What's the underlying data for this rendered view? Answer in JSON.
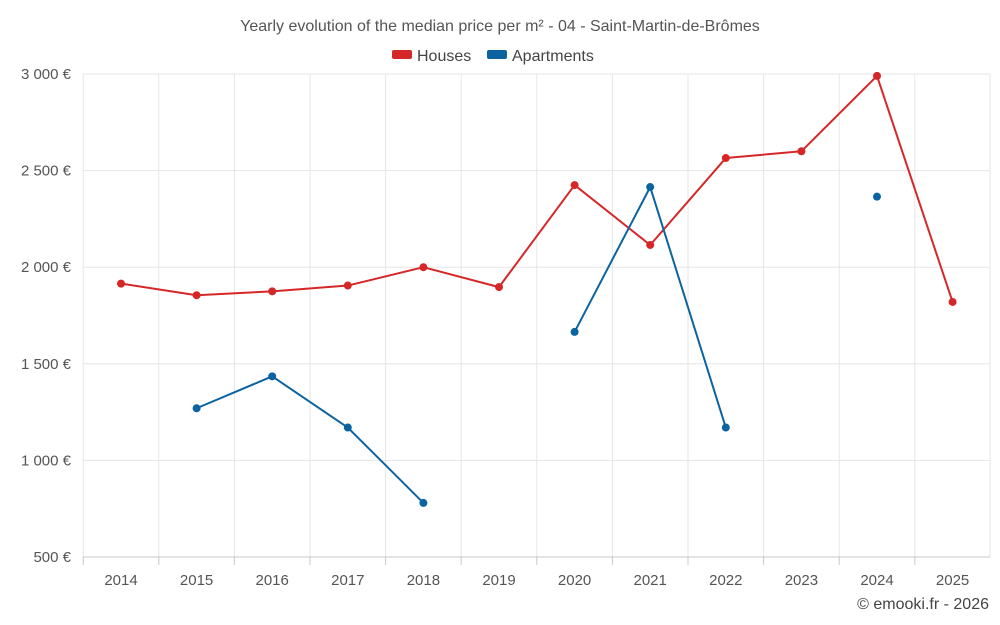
{
  "chart_data": {
    "type": "line",
    "title": "Yearly evolution of the median price per m² - 04 - Saint-Martin-de-Brômes",
    "xlabel": "",
    "ylabel": "",
    "categories": [
      "2014",
      "2015",
      "2016",
      "2017",
      "2018",
      "2019",
      "2020",
      "2021",
      "2022",
      "2023",
      "2024",
      "2025"
    ],
    "ylim": [
      500,
      3000
    ],
    "yticks": [
      500,
      1000,
      1500,
      2000,
      2500,
      3000
    ],
    "ytick_labels": [
      "500 €",
      "1 000 €",
      "1 500 €",
      "2 000 €",
      "2 500 €",
      "3 000 €"
    ],
    "grid": true,
    "legend_position": "top-center",
    "series": [
      {
        "name": "Houses",
        "color": "#d62728",
        "values": [
          1915,
          1855,
          1875,
          1905,
          2000,
          1897,
          2425,
          2115,
          2565,
          2600,
          2990,
          1820
        ]
      },
      {
        "name": "Apartments",
        "color": "#0b63a0",
        "values": [
          null,
          1270,
          1435,
          1170,
          780,
          null,
          1665,
          2415,
          1170,
          null,
          2365,
          null
        ]
      }
    ],
    "credit": "© emooki.fr - 2026"
  }
}
